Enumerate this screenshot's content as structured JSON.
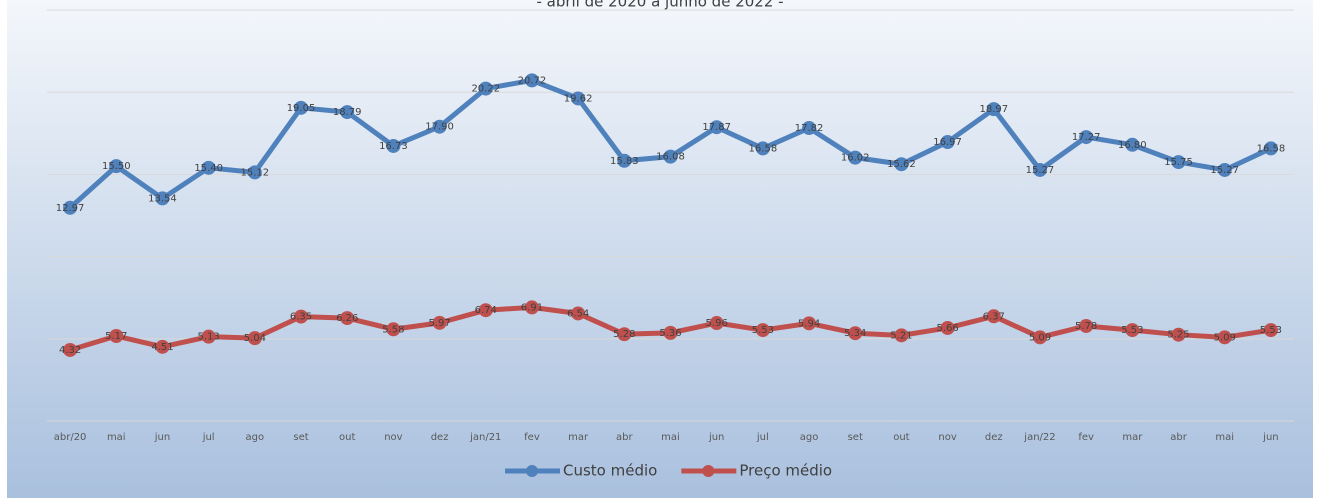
{
  "chart_data": {
    "type": "line",
    "subtitle": "- abril de 2020 a junho de 2022 -",
    "categories": [
      "abr/20",
      "mai",
      "jun",
      "jul",
      "ago",
      "set",
      "out",
      "nov",
      "dez",
      "jan/21",
      "fev",
      "mar",
      "abr",
      "mai",
      "jun",
      "jul",
      "ago",
      "set",
      "out",
      "nov",
      "dez",
      "jan/22",
      "fev",
      "mar",
      "abr",
      "mai",
      "jun"
    ],
    "series": [
      {
        "name": "Custo médio",
        "color": "#4f81bd",
        "values": [
          12.97,
          15.5,
          13.54,
          15.4,
          15.12,
          19.05,
          18.79,
          16.73,
          17.9,
          20.22,
          20.72,
          19.62,
          15.83,
          16.08,
          17.87,
          16.58,
          17.82,
          16.02,
          15.62,
          16.97,
          18.97,
          15.27,
          17.27,
          16.8,
          15.75,
          15.27,
          16.58
        ],
        "value_labels": [
          "12.97",
          "15.50",
          "13.54",
          "15.40",
          "15.12",
          "19.05",
          "18.79",
          "16.73",
          "17.90",
          "20.22",
          "20.72",
          "19.62",
          "15.83",
          "16.08",
          "17.87",
          "16.58",
          "17.82",
          "16.02",
          "15.62",
          "16.97",
          "18.97",
          "15.27",
          "17.27",
          "16.80",
          "15.75",
          "15.27",
          "16.58"
        ]
      },
      {
        "name": "Preço médio",
        "color": "#c0504d",
        "values": [
          4.32,
          5.17,
          4.51,
          5.13,
          5.04,
          6.35,
          6.26,
          5.58,
          5.97,
          6.74,
          6.91,
          6.54,
          5.28,
          5.36,
          5.96,
          5.53,
          5.94,
          5.34,
          5.21,
          5.66,
          6.37,
          5.09,
          5.78,
          5.53,
          5.25,
          5.09,
          5.53
        ]
      }
    ],
    "ylim": [
      0,
      25
    ],
    "yticks": [
      0,
      5,
      10,
      15,
      20,
      25
    ],
    "grid": true,
    "legend": "bottom"
  }
}
